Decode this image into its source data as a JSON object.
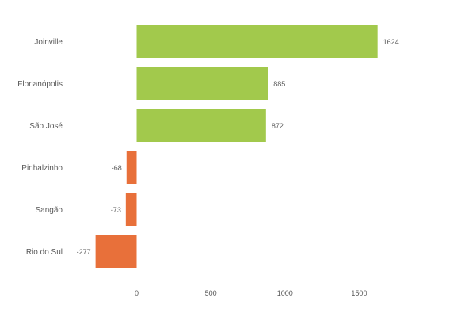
{
  "chart_data": {
    "type": "bar",
    "orientation": "horizontal",
    "categories": [
      "Joinville",
      "Florianópolis",
      "São José",
      "Pinhalzinho",
      "Sangão",
      "Rio do Sul"
    ],
    "values": [
      1624,
      885,
      872,
      -68,
      -73,
      -277
    ],
    "value_labels": [
      "1624",
      "885",
      "872",
      "-68",
      "-73",
      "-277"
    ],
    "x_ticks": [
      0,
      500,
      1000,
      1500
    ],
    "x_tick_labels": [
      "0",
      "500",
      "1000",
      "1500"
    ],
    "xlim": [
      -300,
      1700
    ],
    "grid": false,
    "legend": "none",
    "colors": {
      "positive": "#a2c94c",
      "negative": "#e8703a"
    }
  }
}
